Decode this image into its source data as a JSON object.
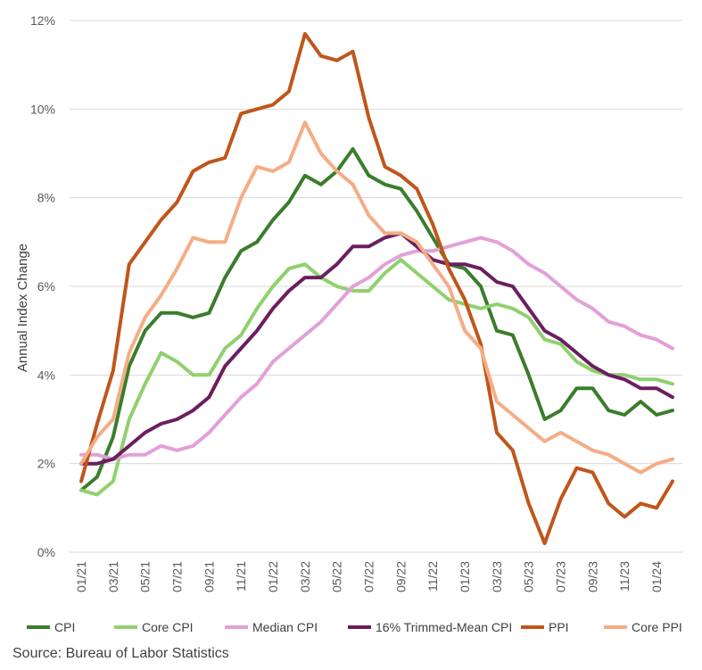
{
  "chart_data": {
    "type": "line",
    "ylabel": "Annual Index Change",
    "xlabel": "",
    "ylim": [
      0,
      12
    ],
    "yticks": [
      "0%",
      "2%",
      "4%",
      "6%",
      "8%",
      "10%",
      "12%"
    ],
    "grid": true,
    "legend_position": "bottom",
    "x": [
      "01/21",
      "02/21",
      "03/21",
      "04/21",
      "05/21",
      "06/21",
      "07/21",
      "08/21",
      "09/21",
      "10/21",
      "11/21",
      "12/21",
      "01/22",
      "02/22",
      "03/22",
      "04/22",
      "05/22",
      "06/22",
      "07/22",
      "08/22",
      "09/22",
      "10/22",
      "11/22",
      "12/22",
      "01/23",
      "02/23",
      "03/23",
      "04/23",
      "05/23",
      "06/23",
      "07/23",
      "08/23",
      "09/23",
      "10/23",
      "11/23",
      "12/23",
      "01/24",
      "02/24"
    ],
    "xtick_labels": [
      "01/21",
      "03/21",
      "05/21",
      "07/21",
      "09/21",
      "11/21",
      "01/22",
      "03/22",
      "05/22",
      "07/22",
      "09/22",
      "11/22",
      "01/23",
      "03/23",
      "05/23",
      "07/23",
      "09/23",
      "11/23",
      "01/24"
    ],
    "series": [
      {
        "name": "CPI",
        "color": "#3a7d2c",
        "values": [
          1.4,
          1.7,
          2.6,
          4.2,
          5.0,
          5.4,
          5.4,
          5.3,
          5.4,
          6.2,
          6.8,
          7.0,
          7.5,
          7.9,
          8.5,
          8.3,
          8.6,
          9.1,
          8.5,
          8.3,
          8.2,
          7.7,
          7.1,
          6.5,
          6.4,
          6.0,
          5.0,
          4.9,
          4.0,
          3.0,
          3.2,
          3.7,
          3.7,
          3.2,
          3.1,
          3.4,
          3.1,
          3.2
        ]
      },
      {
        "name": "Core CPI",
        "color": "#8fd16e",
        "values": [
          1.4,
          1.3,
          1.6,
          3.0,
          3.8,
          4.5,
          4.3,
          4.0,
          4.0,
          4.6,
          4.9,
          5.5,
          6.0,
          6.4,
          6.5,
          6.2,
          6.0,
          5.9,
          5.9,
          6.3,
          6.6,
          6.3,
          6.0,
          5.7,
          5.6,
          5.5,
          5.6,
          5.5,
          5.3,
          4.8,
          4.7,
          4.3,
          4.1,
          4.0,
          4.0,
          3.9,
          3.9,
          3.8
        ]
      },
      {
        "name": "Median CPI",
        "color": "#e2a0d8",
        "values": [
          2.2,
          2.2,
          2.1,
          2.2,
          2.2,
          2.4,
          2.3,
          2.4,
          2.7,
          3.1,
          3.5,
          3.8,
          4.3,
          4.6,
          4.9,
          5.2,
          5.6,
          6.0,
          6.2,
          6.5,
          6.7,
          6.8,
          6.8,
          6.9,
          7.0,
          7.1,
          7.0,
          6.8,
          6.5,
          6.3,
          6.0,
          5.7,
          5.5,
          5.2,
          5.1,
          4.9,
          4.8,
          4.6
        ]
      },
      {
        "name": "16% Trimmed-Mean CPI",
        "color": "#6b1f5e",
        "values": [
          2.0,
          2.0,
          2.1,
          2.4,
          2.7,
          2.9,
          3.0,
          3.2,
          3.5,
          4.2,
          4.6,
          5.0,
          5.5,
          5.9,
          6.2,
          6.2,
          6.5,
          6.9,
          6.9,
          7.1,
          7.2,
          6.9,
          6.6,
          6.5,
          6.5,
          6.4,
          6.1,
          6.0,
          5.5,
          5.0,
          4.8,
          4.5,
          4.2,
          4.0,
          3.9,
          3.7,
          3.7,
          3.5
        ]
      },
      {
        "name": "PPI",
        "color": "#c0561b",
        "values": [
          1.6,
          2.9,
          4.1,
          6.5,
          7.0,
          7.5,
          7.9,
          8.6,
          8.8,
          8.9,
          9.9,
          10.0,
          10.1,
          10.4,
          11.7,
          11.2,
          11.1,
          11.3,
          9.8,
          8.7,
          8.5,
          8.2,
          7.4,
          6.4,
          5.7,
          4.7,
          2.7,
          2.3,
          1.1,
          0.2,
          1.2,
          1.9,
          1.8,
          1.1,
          0.8,
          1.1,
          1.0,
          1.6
        ]
      },
      {
        "name": "Core PPI",
        "color": "#f4ad85",
        "values": [
          2.0,
          2.6,
          3.0,
          4.5,
          5.3,
          5.8,
          6.4,
          7.1,
          7.0,
          7.0,
          8.0,
          8.7,
          8.6,
          8.8,
          9.7,
          9.0,
          8.6,
          8.3,
          7.6,
          7.2,
          7.2,
          7.0,
          6.5,
          6.0,
          5.0,
          4.6,
          3.4,
          3.1,
          2.8,
          2.5,
          2.7,
          2.5,
          2.3,
          2.2,
          2.0,
          1.8,
          2.0,
          2.1
        ]
      }
    ]
  },
  "source": "Source: Bureau of Labor Statistics"
}
